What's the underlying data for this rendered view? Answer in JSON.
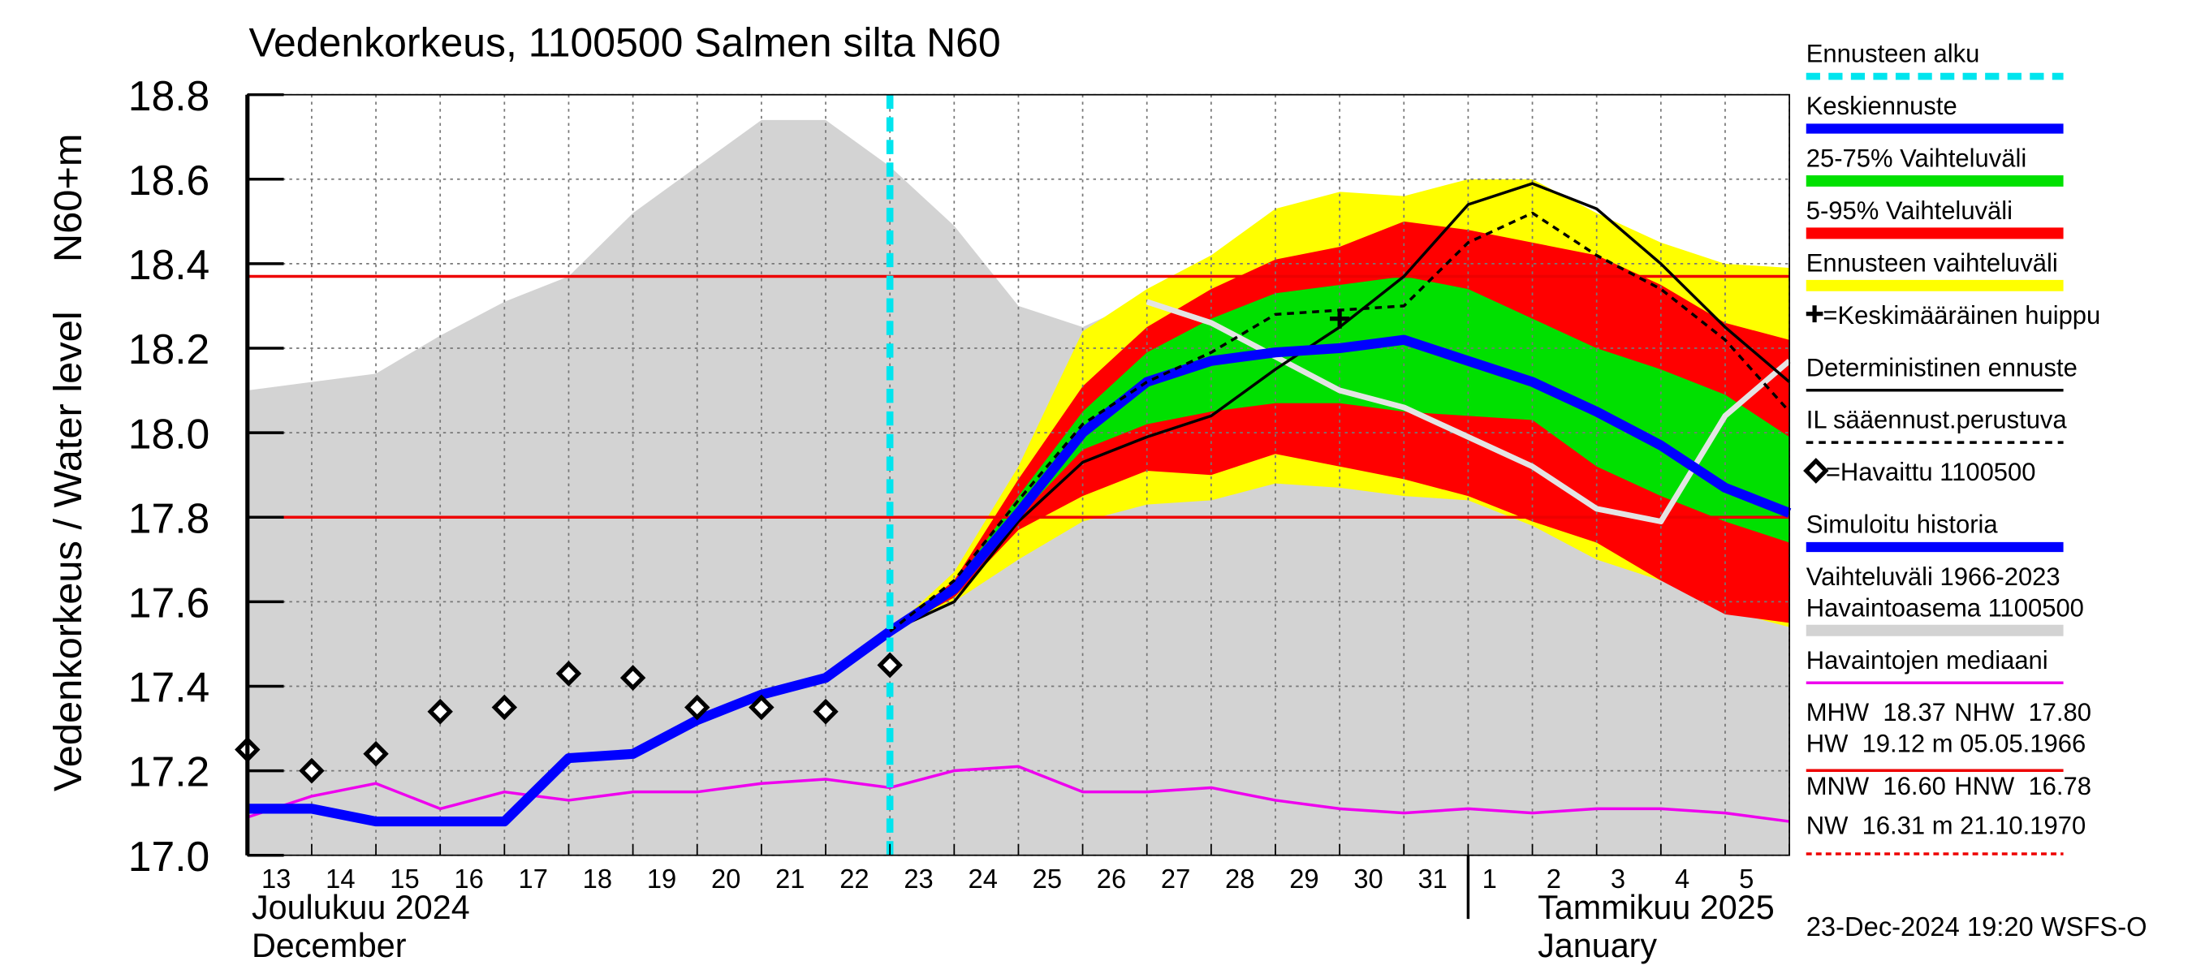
{
  "chart_data": {
    "type": "line",
    "title": "Vedenkorkeus, 1100500 Salmen silta N60",
    "y_label": "Vedenkorkeus / Water level",
    "y_unit_label": "N60+m",
    "month_labels": [
      "Joulukuu  2024",
      "December",
      "Tammikuu  2025",
      "January"
    ],
    "footer": "23-Dec-2024 19:20 WSFS-O",
    "categories": [
      "13",
      "14",
      "15",
      "16",
      "17",
      "18",
      "19",
      "20",
      "21",
      "22",
      "23",
      "24",
      "25",
      "26",
      "27",
      "28",
      "29",
      "30",
      "31",
      "1",
      "2",
      "3",
      "4",
      "5",
      null
    ],
    "ylim": [
      17.0,
      18.8
    ],
    "yticks": [
      {
        "value": 17.0,
        "label": "17.0"
      },
      17.2,
      17.4,
      17.6,
      17.8,
      {
        "value": 18.0,
        "label": "18.0"
      },
      18.2,
      18.4,
      18.6,
      18.8
    ],
    "grid": true,
    "series": [
      {
        "name": "Ennusteen alku",
        "kind": "vline",
        "color": "#00e5ee",
        "x": "23"
      },
      {
        "name": "Keskiennuste",
        "kind": "thick-line",
        "color": "#0000ff",
        "values": [
          null,
          null,
          null,
          null,
          null,
          null,
          null,
          null,
          null,
          null,
          17.53,
          17.63,
          17.81,
          18.0,
          18.12,
          18.17,
          18.19,
          18.2,
          18.22,
          18.17,
          18.12,
          18.05,
          17.97,
          17.87,
          17.81
        ]
      },
      {
        "name": "25-75% Vaihteluväli",
        "kind": "band",
        "color": "#00e000",
        "upper": [
          null,
          null,
          null,
          null,
          null,
          null,
          null,
          null,
          null,
          null,
          17.53,
          17.64,
          17.85,
          18.05,
          18.19,
          18.27,
          18.33,
          18.35,
          18.37,
          18.34,
          18.27,
          18.2,
          18.15,
          18.09,
          17.99
        ],
        "lower": [
          null,
          null,
          null,
          null,
          null,
          null,
          null,
          null,
          null,
          null,
          17.53,
          17.62,
          17.8,
          17.96,
          18.02,
          18.05,
          18.07,
          18.07,
          18.05,
          18.04,
          18.03,
          17.92,
          17.85,
          17.79,
          17.74
        ]
      },
      {
        "name": "5-95% Vaihteluväli",
        "kind": "band",
        "color": "#ff0000",
        "upper": [
          null,
          null,
          null,
          null,
          null,
          null,
          null,
          null,
          null,
          null,
          17.53,
          17.65,
          17.89,
          18.11,
          18.25,
          18.34,
          18.41,
          18.44,
          18.5,
          18.48,
          18.45,
          18.42,
          18.35,
          18.26,
          18.22
        ],
        "lower": [
          null,
          null,
          null,
          null,
          null,
          null,
          null,
          null,
          null,
          null,
          17.53,
          17.61,
          17.77,
          17.85,
          17.91,
          17.9,
          17.95,
          17.92,
          17.89,
          17.85,
          17.79,
          17.74,
          17.65,
          17.57,
          17.55
        ]
      },
      {
        "name": "Ennusteen vaihteluväli",
        "kind": "band",
        "color": "#ffff00",
        "upper": [
          null,
          null,
          null,
          null,
          null,
          null,
          null,
          null,
          null,
          null,
          17.53,
          17.67,
          17.92,
          18.24,
          18.34,
          18.42,
          18.53,
          18.57,
          18.56,
          18.6,
          18.6,
          18.52,
          18.45,
          18.4,
          18.39
        ],
        "lower": [
          null,
          null,
          null,
          null,
          null,
          null,
          null,
          null,
          null,
          null,
          17.53,
          17.6,
          17.7,
          17.79,
          17.83,
          17.84,
          17.88,
          17.87,
          17.85,
          17.84,
          17.78,
          17.7,
          17.65,
          17.58,
          17.54
        ]
      },
      {
        "name": "=Keskimääräinen huippu",
        "kind": "cross",
        "color": "#000000",
        "values": [
          null,
          null,
          null,
          null,
          null,
          null,
          null,
          null,
          null,
          null,
          null,
          null,
          null,
          null,
          null,
          null,
          null,
          18.27,
          null,
          null,
          null,
          null,
          null,
          null,
          null
        ]
      },
      {
        "name": "Deterministinen ennuste",
        "kind": "line",
        "color": "#000000",
        "values": [
          null,
          null,
          null,
          null,
          null,
          null,
          null,
          null,
          null,
          null,
          17.53,
          17.6,
          17.79,
          17.93,
          17.99,
          18.04,
          18.15,
          18.25,
          18.37,
          18.54,
          18.59,
          18.53,
          18.4,
          18.25,
          18.12
        ]
      },
      {
        "name": "IL sääennust.perustuva",
        "kind": "dashed-line",
        "color": "#000000",
        "values": [
          null,
          null,
          null,
          null,
          null,
          null,
          null,
          null,
          null,
          null,
          17.53,
          17.65,
          17.84,
          18.02,
          18.12,
          18.19,
          18.28,
          18.29,
          18.3,
          18.45,
          18.52,
          18.42,
          18.34,
          18.22,
          18.05
        ]
      },
      {
        "name": "=Havaittu 1100500",
        "kind": "markers",
        "color": "#000000",
        "values": [
          17.25,
          17.2,
          17.24,
          17.34,
          17.35,
          17.43,
          17.42,
          17.35,
          17.35,
          17.34,
          17.45,
          null,
          null,
          null,
          null,
          null,
          null,
          null,
          null,
          null,
          null,
          null,
          null,
          null,
          null
        ]
      },
      {
        "name": "Simuloitu historia",
        "kind": "thick-line",
        "color": "#0000ff",
        "values": [
          17.11,
          17.11,
          17.08,
          17.08,
          17.08,
          17.23,
          17.24,
          17.32,
          17.38,
          17.42,
          17.53,
          null,
          null,
          null,
          null,
          null,
          null,
          null,
          null,
          null,
          null,
          null,
          null,
          null,
          null
        ]
      },
      {
        "name": [
          "Vaihteluväli 1966-2023",
          " Havaintoasema 1100500"
        ],
        "kind": "area",
        "color": "#d3d3d3",
        "values": [
          18.1,
          18.12,
          18.14,
          18.23,
          18.31,
          18.37,
          18.52,
          18.63,
          18.74,
          18.74,
          18.63,
          18.49,
          18.3,
          18.25,
          18.32,
          18.3,
          18.28,
          18.27,
          18.27,
          18.27,
          18.27,
          18.27,
          18.27,
          18.27,
          18.27
        ]
      },
      {
        "name": "Havaintojen mediaani",
        "kind": "line",
        "color": "#ee00ee",
        "values": [
          17.09,
          17.14,
          17.17,
          17.11,
          17.15,
          17.13,
          17.15,
          17.15,
          17.17,
          17.18,
          17.16,
          17.2,
          17.21,
          17.15,
          17.15,
          17.16,
          17.13,
          17.11,
          17.1,
          17.11,
          17.1,
          17.11,
          17.11,
          17.1,
          17.08
        ]
      },
      {
        "kind": "soft-line",
        "color": "#e4e4e4",
        "values": [
          null,
          null,
          null,
          null,
          null,
          null,
          null,
          null,
          null,
          null,
          null,
          null,
          null,
          null,
          18.31,
          18.26,
          18.18,
          18.1,
          18.06,
          17.99,
          17.92,
          17.82,
          17.79,
          18.04,
          18.17
        ]
      }
    ],
    "stats": [
      {
        "name": "MHW",
        "value": 18.37,
        "label": "18.37",
        "line": true
      },
      {
        "name": "NHW",
        "value": 17.8,
        "label": "17.80",
        "line": true
      },
      {
        "name": "HW",
        "value": 19.12,
        "label": "19.12",
        "unit": "m",
        "date": "05.05.1966"
      },
      {
        "name": "MNW",
        "value": 16.6,
        "label": "16.60"
      },
      {
        "name": "HNW",
        "value": 16.78,
        "label": "16.78"
      },
      {
        "name": "NW",
        "value": 16.31,
        "label": "16.31",
        "unit": "m",
        "date": "21.10.1970"
      }
    ]
  }
}
